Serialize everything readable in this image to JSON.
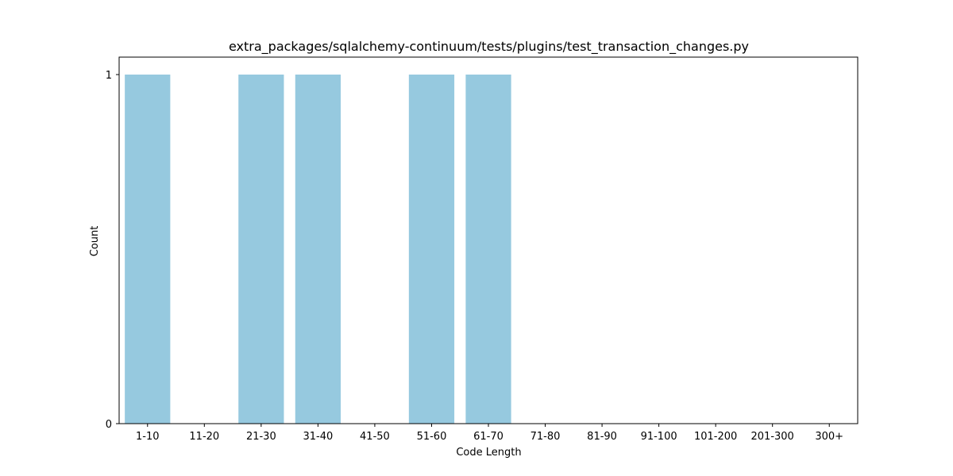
{
  "chart_data": {
    "type": "bar",
    "title": "extra_packages/sqlalchemy-continuum/tests/plugins/test_transaction_changes.py",
    "xlabel": "Code Length",
    "ylabel": "Count",
    "categories": [
      "1-10",
      "11-20",
      "21-30",
      "31-40",
      "41-50",
      "51-60",
      "61-70",
      "71-80",
      "81-90",
      "91-100",
      "101-200",
      "201-300",
      "300+"
    ],
    "values": [
      1,
      0,
      1,
      1,
      0,
      1,
      1,
      0,
      0,
      0,
      0,
      0,
      0
    ],
    "ylim": [
      0,
      1
    ],
    "yticks": [
      0,
      1
    ],
    "grid": false,
    "legend": "none",
    "bar_color": "#96c9df"
  }
}
